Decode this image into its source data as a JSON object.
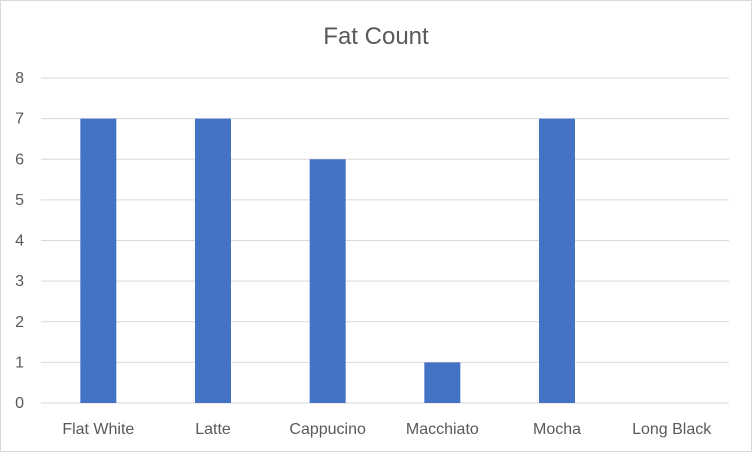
{
  "chart_data": {
    "type": "bar",
    "title": "Fat Count",
    "xlabel": "",
    "ylabel": "",
    "categories": [
      "Flat White",
      "Latte",
      "Cappucino",
      "Macchiato",
      "Mocha",
      "Long Black"
    ],
    "values": [
      7,
      7,
      6,
      1,
      7,
      0
    ],
    "ylim": [
      0,
      8
    ],
    "yticks": [
      0,
      1,
      2,
      3,
      4,
      5,
      6,
      7,
      8
    ],
    "grid": true,
    "legend": "none",
    "bar_color": "#4472c4",
    "grid_color": "#d9d9d9"
  }
}
